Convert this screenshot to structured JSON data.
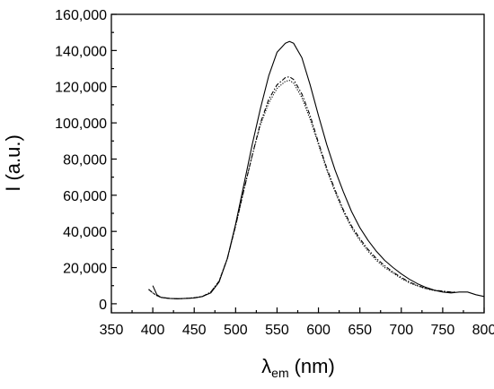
{
  "chart_data": {
    "type": "line",
    "xlabel": "λ",
    "xlabel_sub": "em",
    "xlabel_unit": "(nm)",
    "ylabel": "I (a.u.)",
    "xlim": [
      350,
      800
    ],
    "ylim": [
      -5000,
      160000
    ],
    "x_ticks": [
      350,
      400,
      450,
      500,
      550,
      600,
      650,
      700,
      750,
      800
    ],
    "y_ticks": [
      0,
      20000,
      40000,
      60000,
      80000,
      100000,
      120000,
      140000,
      160000
    ],
    "x_tick_labels": [
      "350",
      "400",
      "450",
      "500",
      "550",
      "600",
      "650",
      "700",
      "750",
      "800"
    ],
    "y_tick_labels": [
      "0",
      "20,000",
      "40,000",
      "60,000",
      "80,000",
      "100,000",
      "120,000",
      "140,000",
      "160,000"
    ],
    "grid": false,
    "legend": "none",
    "series": [
      {
        "style": "solid",
        "points": [
          [
            400,
            10000
          ],
          [
            405,
            5000
          ],
          [
            410,
            3500
          ],
          [
            420,
            3000
          ],
          [
            430,
            2800
          ],
          [
            440,
            3000
          ],
          [
            450,
            3200
          ],
          [
            460,
            4000
          ],
          [
            470,
            6000
          ],
          [
            480,
            12000
          ],
          [
            490,
            25000
          ],
          [
            500,
            44000
          ],
          [
            510,
            66000
          ],
          [
            520,
            88000
          ],
          [
            530,
            108000
          ],
          [
            540,
            126000
          ],
          [
            550,
            139000
          ],
          [
            560,
            144000
          ],
          [
            565,
            145000
          ],
          [
            570,
            144000
          ],
          [
            580,
            136000
          ],
          [
            590,
            121000
          ],
          [
            600,
            104000
          ],
          [
            610,
            88000
          ],
          [
            620,
            74000
          ],
          [
            630,
            62000
          ],
          [
            640,
            51000
          ],
          [
            650,
            42000
          ],
          [
            660,
            35000
          ],
          [
            670,
            29000
          ],
          [
            680,
            24000
          ],
          [
            690,
            20000
          ],
          [
            700,
            16500
          ],
          [
            710,
            13500
          ],
          [
            720,
            11000
          ],
          [
            730,
            9000
          ],
          [
            740,
            7500
          ],
          [
            750,
            6500
          ],
          [
            760,
            6000
          ],
          [
            770,
            6500
          ],
          [
            780,
            6500
          ],
          [
            790,
            5000
          ],
          [
            800,
            4000
          ]
        ]
      },
      {
        "style": "dashed",
        "points": [
          [
            395,
            8000
          ],
          [
            400,
            6000
          ],
          [
            405,
            4500
          ],
          [
            410,
            3500
          ],
          [
            420,
            3000
          ],
          [
            430,
            2800
          ],
          [
            440,
            3000
          ],
          [
            450,
            3300
          ],
          [
            460,
            4000
          ],
          [
            470,
            6500
          ],
          [
            480,
            12500
          ],
          [
            490,
            25000
          ],
          [
            500,
            43000
          ],
          [
            510,
            63000
          ],
          [
            520,
            82000
          ],
          [
            530,
            100000
          ],
          [
            540,
            113000
          ],
          [
            550,
            121000
          ],
          [
            560,
            125000
          ],
          [
            565,
            125500
          ],
          [
            570,
            124000
          ],
          [
            580,
            116000
          ],
          [
            590,
            104000
          ],
          [
            600,
            89000
          ],
          [
            610,
            75000
          ],
          [
            620,
            63000
          ],
          [
            630,
            52000
          ],
          [
            640,
            43000
          ],
          [
            650,
            36000
          ],
          [
            660,
            30000
          ],
          [
            670,
            25000
          ],
          [
            680,
            21000
          ],
          [
            690,
            17500
          ],
          [
            700,
            14500
          ],
          [
            710,
            12000
          ],
          [
            720,
            10000
          ],
          [
            730,
            8500
          ],
          [
            740,
            7500
          ],
          [
            750,
            7000
          ],
          [
            760,
            6500
          ],
          [
            765,
            6500
          ]
        ]
      },
      {
        "style": "dotted",
        "points": [
          [
            395,
            8000
          ],
          [
            400,
            6000
          ],
          [
            405,
            4500
          ],
          [
            410,
            3500
          ],
          [
            420,
            3000
          ],
          [
            430,
            2800
          ],
          [
            440,
            3000
          ],
          [
            450,
            3300
          ],
          [
            460,
            4000
          ],
          [
            470,
            6500
          ],
          [
            480,
            12500
          ],
          [
            490,
            25000
          ],
          [
            500,
            43000
          ],
          [
            510,
            63000
          ],
          [
            520,
            82000
          ],
          [
            530,
            99000
          ],
          [
            540,
            111000
          ],
          [
            550,
            119000
          ],
          [
            560,
            123000
          ],
          [
            565,
            123500
          ],
          [
            570,
            122000
          ],
          [
            580,
            114000
          ],
          [
            590,
            102000
          ],
          [
            600,
            88000
          ],
          [
            610,
            74000
          ],
          [
            620,
            62000
          ],
          [
            630,
            51000
          ],
          [
            640,
            42000
          ],
          [
            650,
            35000
          ],
          [
            660,
            29000
          ],
          [
            670,
            24000
          ],
          [
            680,
            20000
          ],
          [
            690,
            17000
          ],
          [
            700,
            14000
          ],
          [
            710,
            11500
          ],
          [
            720,
            9800
          ],
          [
            730,
            8300
          ],
          [
            740,
            7300
          ],
          [
            750,
            6800
          ],
          [
            760,
            6400
          ],
          [
            765,
            6400
          ]
        ]
      }
    ]
  }
}
